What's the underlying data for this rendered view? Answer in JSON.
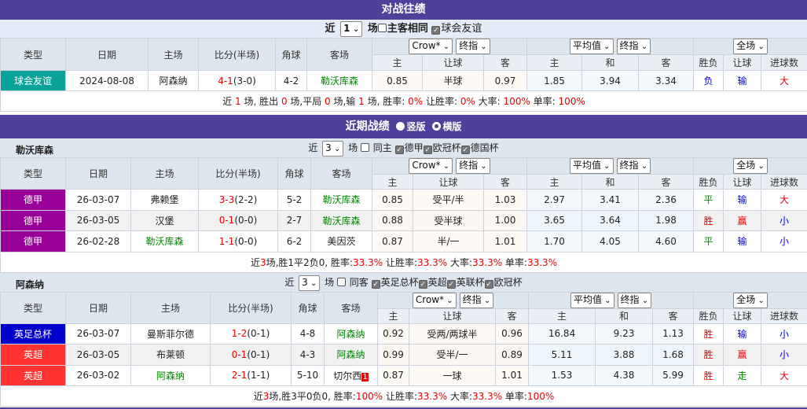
{
  "colors": {
    "header_purple": "#51409a",
    "win": "#e00",
    "draw": "#080",
    "loss": "#00e"
  },
  "h2h": {
    "title": "对战往绩",
    "filter": {
      "near": "近",
      "count": "1",
      "unit": "场",
      "same_home": "主客相同",
      "same_home_checked": false,
      "league": "球会友谊",
      "league_checked": true
    },
    "headers": {
      "type": "类型",
      "date": "日期",
      "home": "主场",
      "score": "比分(半场)",
      "corner": "角球",
      "away": "客场",
      "company": "Crow*",
      "odds_kind": "终指",
      "avg": "平均值",
      "odds_kind2": "终指",
      "period": "全场",
      "ah_home": "主",
      "ah_line": "让球",
      "ah_away": "客",
      "eu_home": "主",
      "eu_draw": "和",
      "eu_away": "客",
      "wl": "胜负",
      "ah_res": "让球",
      "ou": "进球数"
    },
    "rows": [
      {
        "type": "球会友谊",
        "type_color": "#0aa39a",
        "date": "2024-08-08",
        "home": "阿森纳",
        "home_color": "",
        "score": "4-1",
        "half": "(3-0)",
        "corner": "4-2",
        "away": "勒沃库森",
        "away_color": "green",
        "ah_home": "0.85",
        "ah_line": "半球",
        "ah_away": "0.97",
        "eu_home": "1.85",
        "eu_draw": "3.94",
        "eu_away": "3.34",
        "wl": "负",
        "wl_color": "blue",
        "ah_res": "输",
        "ah_color": "blue",
        "ou": "大",
        "ou_color": "red"
      }
    ],
    "summary": [
      {
        "t": "近 "
      },
      {
        "t": "1",
        "r": 1
      },
      {
        "t": " 场, 胜出 "
      },
      {
        "t": "0",
        "r": 1
      },
      {
        "t": " 场,平局 "
      },
      {
        "t": "0",
        "r": 1
      },
      {
        "t": " 场,输 "
      },
      {
        "t": "1",
        "r": 1
      },
      {
        "t": " 场, 胜率: "
      },
      {
        "t": "0%",
        "r": 1
      },
      {
        "t": " 让胜率: "
      },
      {
        "t": "0%",
        "r": 1
      },
      {
        "t": " 大率: "
      },
      {
        "t": "100%",
        "r": 1
      },
      {
        "t": " 单率: "
      },
      {
        "t": "100%",
        "r": 1
      }
    ]
  },
  "recent": {
    "title": "近期战绩",
    "view_vertical": "竖版",
    "view_horizontal": "横版",
    "teams": [
      {
        "name": "勒沃库森",
        "filter": {
          "near": "近",
          "count": "3",
          "unit": "场",
          "same": "同主",
          "same_checked": false,
          "leagues": [
            {
              "l": "德甲",
              "on": true
            },
            {
              "l": "欧冠杯",
              "on": true
            },
            {
              "l": "德国杯",
              "on": true
            }
          ]
        },
        "rows": [
          {
            "type": "德甲",
            "type_color": "#990099",
            "date": "26-03-07",
            "home": "弗赖堡",
            "home_color": "",
            "score": "3-3",
            "half": "(2-2)",
            "corner": "5-2",
            "away": "勒沃库森",
            "away_color": "green",
            "ah_home": "0.85",
            "ah_line": "受平/半",
            "ah_away": "1.03",
            "eu_home": "2.97",
            "eu_draw": "3.41",
            "eu_away": "2.36",
            "wl": "平",
            "wl_color": "green",
            "ah_res": "输",
            "ah_color": "blue",
            "ou": "大",
            "ou_color": "red"
          },
          {
            "type": "德甲",
            "type_color": "#990099",
            "date": "26-03-05",
            "home": "汉堡",
            "home_color": "",
            "score": "0-1",
            "half": "(0-0)",
            "corner": "2-7",
            "away": "勒沃库森",
            "away_color": "green",
            "ah_home": "0.88",
            "ah_line": "受半球",
            "ah_away": "1.00",
            "eu_home": "3.65",
            "eu_draw": "3.64",
            "eu_away": "1.98",
            "wl": "胜",
            "wl_color": "red",
            "ah_res": "赢",
            "ah_color": "red",
            "ou": "小",
            "ou_color": "blue"
          },
          {
            "type": "德甲",
            "type_color": "#990099",
            "date": "26-02-28",
            "home": "勒沃库森",
            "home_color": "green",
            "score": "1-1",
            "half": "(0-0)",
            "corner": "6-2",
            "away": "美因茨",
            "away_color": "",
            "ah_home": "0.87",
            "ah_line": "半/一",
            "ah_away": "1.01",
            "eu_home": "1.70",
            "eu_draw": "4.05",
            "eu_away": "4.60",
            "wl": "平",
            "wl_color": "green",
            "ah_res": "输",
            "ah_color": "blue",
            "ou": "小",
            "ou_color": "blue"
          }
        ],
        "summary": [
          {
            "t": "近"
          },
          {
            "t": "3",
            "r": 1
          },
          {
            "t": "场,胜1平2负0, 胜率:"
          },
          {
            "t": "33.3%",
            "r": 1
          },
          {
            "t": " 让胜率:"
          },
          {
            "t": "33.3%",
            "r": 1
          },
          {
            "t": " 大率:"
          },
          {
            "t": "33.3%",
            "r": 1
          },
          {
            "t": " 单率:"
          },
          {
            "t": "33.3%",
            "r": 1
          }
        ]
      },
      {
        "name": "阿森纳",
        "filter": {
          "near": "近",
          "count": "3",
          "unit": "场",
          "same": "同客",
          "same_checked": false,
          "leagues": [
            {
              "l": "英足总杯",
              "on": true
            },
            {
              "l": "英超",
              "on": true
            },
            {
              "l": "英联杯",
              "on": true
            },
            {
              "l": "欧冠杯",
              "on": true
            }
          ]
        },
        "rows": [
          {
            "type": "英足总杯",
            "type_color": "#0000cc",
            "date": "26-03-07",
            "home": "曼斯菲尔德",
            "home_color": "",
            "score": "1-2",
            "half": "(0-1)",
            "corner": "4-8",
            "away": "阿森纳",
            "away_color": "green",
            "ah_home": "0.92",
            "ah_line": "受两/两球半",
            "ah_away": "0.96",
            "eu_home": "16.84",
            "eu_draw": "9.23",
            "eu_away": "1.13",
            "wl": "胜",
            "wl_color": "red",
            "ah_res": "输",
            "ah_color": "blue",
            "ou": "小",
            "ou_color": "blue"
          },
          {
            "type": "英超",
            "type_color": "#ff3333",
            "date": "26-03-05",
            "home": "布莱顿",
            "home_color": "",
            "score": "0-1",
            "half": "(0-1)",
            "corner": "4-3",
            "away": "阿森纳",
            "away_color": "green",
            "ah_home": "0.99",
            "ah_line": "受半/一",
            "ah_away": "0.89",
            "eu_home": "5.11",
            "eu_draw": "3.88",
            "eu_away": "1.68",
            "wl": "胜",
            "wl_color": "red",
            "ah_res": "赢",
            "ah_color": "red",
            "ou": "小",
            "ou_color": "blue"
          },
          {
            "type": "英超",
            "type_color": "#ff3333",
            "date": "26-03-02",
            "home": "阿森纳",
            "home_color": "green",
            "score": "2-1",
            "half": "(1-1)",
            "corner": "5-10",
            "away": "切尔西",
            "away_color": "",
            "away_red_card": "1",
            "ah_home": "0.87",
            "ah_line": "一球",
            "ah_away": "1.01",
            "eu_home": "1.53",
            "eu_draw": "4.38",
            "eu_away": "5.99",
            "wl": "胜",
            "wl_color": "red",
            "ah_res": "走",
            "ah_color": "green",
            "ou": "大",
            "ou_color": "red"
          }
        ],
        "summary": [
          {
            "t": "近"
          },
          {
            "t": "3",
            "r": 1
          },
          {
            "t": "场,胜3平0负0, 胜率:"
          },
          {
            "t": "100%",
            "r": 1
          },
          {
            "t": " 让胜率:"
          },
          {
            "t": "33.3%",
            "r": 1
          },
          {
            "t": " 大率:"
          },
          {
            "t": "33.3%",
            "r": 1
          },
          {
            "t": " 单率:"
          },
          {
            "t": "100%",
            "r": 1
          }
        ]
      }
    ]
  }
}
